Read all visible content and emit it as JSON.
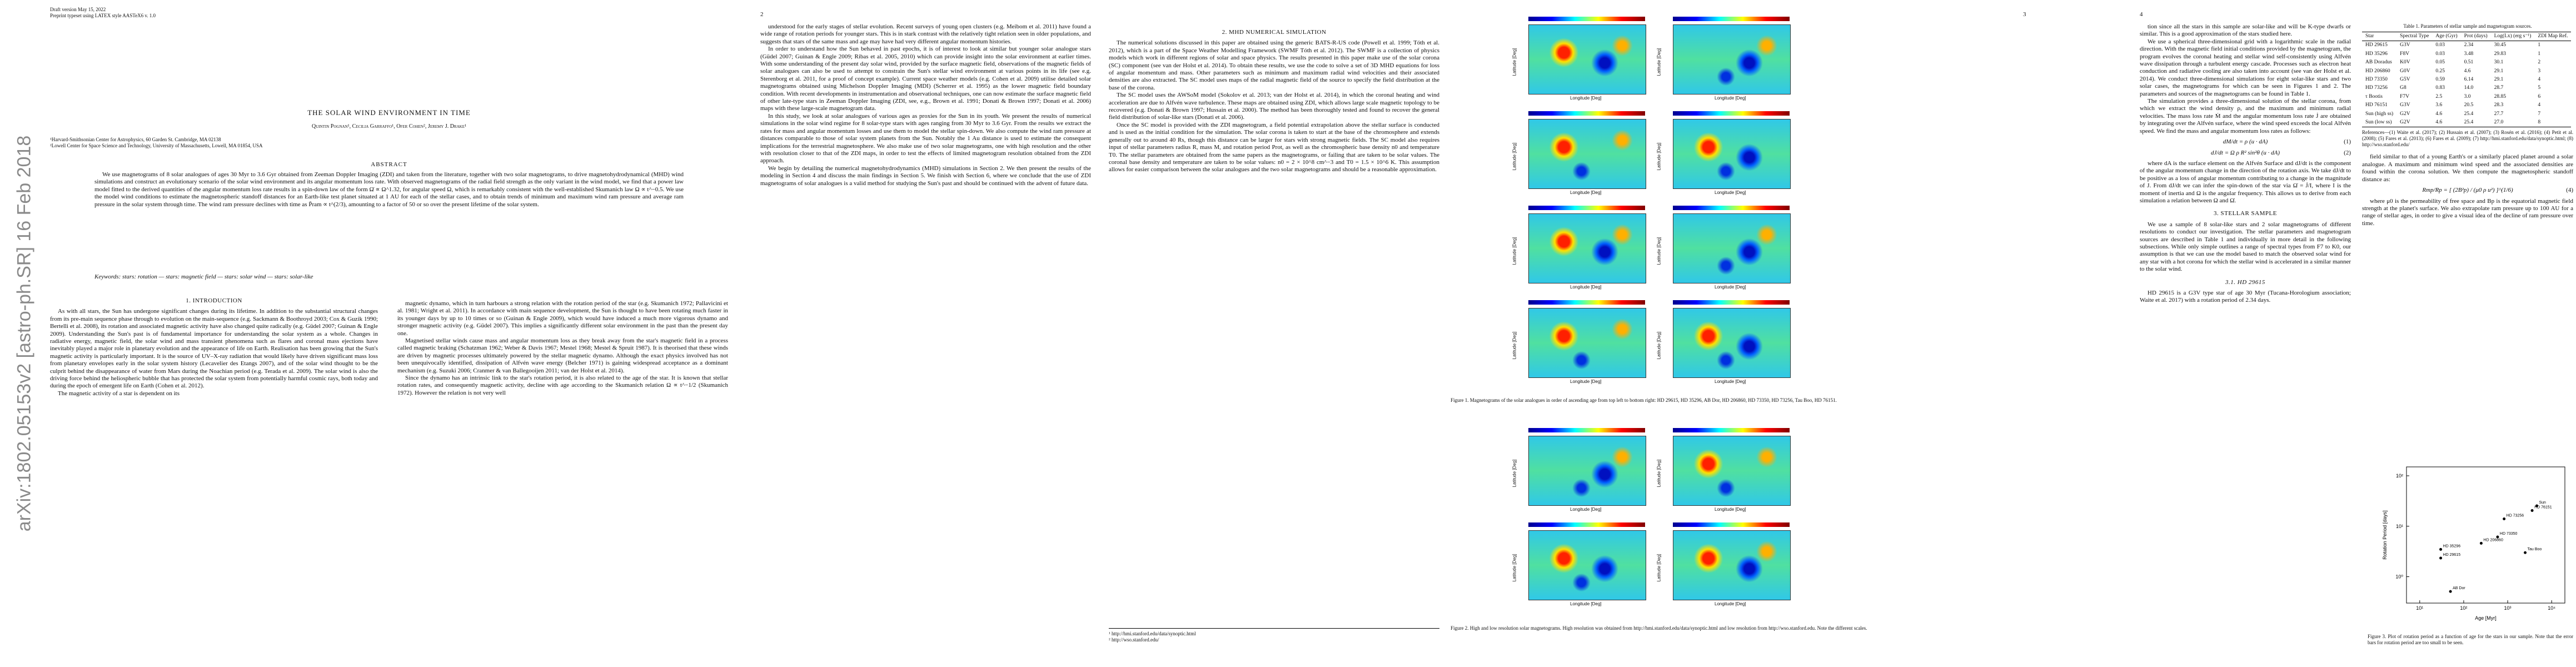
{
  "arxiv_stamp": "arXiv:1802.05153v2  [astro-ph.SR]  16 Feb 2018",
  "page1": {
    "header": [
      "Draft version May 15, 2022",
      "Preprint typeset using LATEX style AASTeX6 v. 1.0"
    ],
    "title": "THE SOLAR WIND ENVIRONMENT IN TIME",
    "authors": "Quintin Pognan¹, Cecilia Garraffo¹, Ofer Cohen², Jeremy J. Drake¹",
    "affiliations": [
      "¹Harvard-Smithsonian Center for Astrophysics, 60 Garden St. Cambridge, MA 02138",
      "²Lowell Center for Space Science and Technology, University of Massachusetts, Lowell, MA 01854, USA"
    ],
    "abstract_heading": "ABSTRACT",
    "abstract": "We use magnetograms of 8 solar analogues of ages 30 Myr to 3.6 Gyr obtained from Zeeman Doppler Imaging (ZDI) and taken from the literature, together with two solar magnetograms, to drive magnetohydrodynamical (MHD) wind simulations and construct an evolutionary scenario of the solar wind environment and its angular momentum loss rate. With observed magnetograms of the radial field strength as the only variant in the wind model, we find that a power law model fitted to the derived quantities of the angular momentum loss rate results in a spin-down law of the form Ω̇ ∝ Ω^1.32, for angular speed Ω, which is remarkably consistent with the well-established Skumanich law Ω ∝ t^−0.5. We use the model wind conditions to estimate the magnetospheric standoff distances for an Earth-like test planet situated at 1 AU for each of the stellar cases, and to obtain trends of minimum and maximum wind ram pressure and average ram pressure in the solar system through time. The wind ram pressure declines with time as P̄ram ∝ t^(2/3), amounting to a factor of 50 or so over the present lifetime of the solar system.",
    "keywords": "Keywords: stars: rotation — stars: magnetic field — stars: solar wind — stars: solar-like",
    "intro_heading": "1. INTRODUCTION",
    "col1": [
      "As with all stars, the Sun has undergone significant changes during its lifetime. In addition to the substantial structural changes from its pre-main sequence phase through to evolution on the main-sequence (e.g. Sackmann & Boothroyd 2003; Cox & Guzik 1990; Bertelli et al. 2008), its rotation and associated magnetic activity have also changed quite radically (e.g. Güdel 2007; Guinan & Engle 2009). Understanding the Sun's past is of fundamental importance for understanding the solar system as a whole. Changes in radiative energy, magnetic field, the solar wind and mass transient phenomena such as flares and coronal mass ejections have inevitably played a major role in planetary evolution and the appearance of life on Earth. Realisation has been growing that the Sun's magnetic activity is particularly important. It is the source of UV–X-ray radiation that would likely have driven significant mass loss from planetary envelopes early in the solar system history (Lecavelier des Etangs 2007), and of the solar wind thought to be the culprit behind the disappearance of water from Mars during the Noachian period (e.g. Terada et al. 2009). The solar wind is also the driving force behind the heliospheric bubble that has protected the solar system from potentially harmful cosmic rays, both today and during the epoch of emergent life on Earth (Cohen et al. 2012).",
      "The magnetic activity of a star is dependent on its"
    ],
    "col2": [
      "magnetic dynamo, which in turn harbours a strong relation with the rotation period of the star (e.g. Skumanich 1972; Pallavicini et al. 1981; Wright et al. 2011). In accordance with main sequence development, the Sun is thought to have been rotating much faster in its younger days by up to 10 times or so (Guinan & Engle 2009), which would have induced a much more vigorous dynamo and stronger magnetic activity (e.g. Güdel 2007). This implies a significantly different solar environment in the past than the present day one.",
      "Magnetised stellar winds cause mass and angular momentum loss as they break away from the star's magnetic field in a process called magnetic braking (Schatzman 1962; Weber & Davis 1967; Mestel 1968; Mestel & Spruit 1987). It is theorised that these winds are driven by magnetic processes ultimately powered by the stellar magnetic dynamo. Although the exact physics involved has not been unequivocally identified, dissipation of Alfvén wave energy (Belcher 1971) is gaining widespread acceptance as a dominant mechanism (e.g. Suzuki 2006; Cranmer & van Ballegooijen 2011; van der Holst et al. 2014).",
      "Since the dynamo has an intrinsic link to the star's rotation period, it is also related to the age of the star. It is known that stellar rotation rates, and consequently magnetic activity, decline with age according to the Skumanich relation Ω ∝ t^−1/2 (Skumanich 1972). However the relation is not very well"
    ]
  },
  "page2": {
    "number": "2",
    "col1": [
      "understood for the early stages of stellar evolution. Recent surveys of young open clusters (e.g. Meibom et al. 2011) have found a wide range of rotation periods for younger stars. This is in stark contrast with the relatively tight relation seen in older populations, and suggests that stars of the same mass and age may have had very different angular momentum histories.",
      "In order to understand how the Sun behaved in past epochs, it is of interest to look at similar but younger solar analogue stars (Güdel 2007; Guinan & Engle 2009; Ribas et al. 2005, 2010) which can provide insight into the solar environment at earlier times. With some understanding of the present day solar wind, provided by the surface magnetic field, observations of the magnetic fields of solar analogues can also be used to attempt to constrain the Sun's stellar wind environment at various points in its life (see e.g. Sterenborg et al. 2011, for a proof of concept example). Current space weather models (e.g. Cohen et al. 2009) utilise detailed solar magnetograms obtained using Michelson Doppler Imaging (MDI) (Scherrer et al. 1995) as the lower magnetic field boundary condition. With recent developments in instrumentation and observational techniques, one can now estimate the surface magnetic field of other late-type stars in Zeeman Doppler Imaging (ZDI, see, e.g., Brown et al. 1991; Donati & Brown 1997; Donati et al. 2006) maps with these large-scale magnetogram data.",
      "In this study, we look at solar analogues of various ages as proxies for the Sun in its youth. We present the results of numerical simulations in the solar wind regime for 8 solar-type stars with ages ranging from 30 Myr to 3.6 Gyr. From the results we extract the rates for mass and angular momentum losses and use them to model the stellar spin-down. We also compute the wind ram pressure at distances comparable to those of solar system planets from the Sun. Notably the 1 Au distance is used to estimate the consequent implications for the terrestrial magnetosphere. We also make use of two solar magnetograms, one with high resolution and the other with resolution closer to that of the ZDI maps, in order to test the effects of limited magnetogram resolution obtained from the ZDI approach.",
      "We begin by detailing the numerical magnetohydrodynamics (MHD) simulations in Section 2. We then present the results of the modeling in Section 4 and discuss the main findings in Section 5. We finish with Section 6, where we conclude that the use of ZDI magnetograms of solar analogues is a valid method for studying the Sun's past and should be continued with the advent of future data."
    ],
    "section_heading": "2. MHD NUMERICAL SIMULATION",
    "col2": [
      "The numerical solutions discussed in this paper are obtained using the generic BATS-R-US code (Powell et al. 1999; Tóth et al. 2012), which is a part of the Space Weather Modelling Framework (SWMF Tóth et al. 2012). The SWMF is a collection of physics models which work in different regions of solar and space physics. The results presented in this paper make use of the solar corona (SC) component (see van der Holst et al. 2014). To obtain these results, we use the code to solve a set of 3D MHD equations for loss of angular momentum and mass. Other parameters such as minimum and maximum radial wind velocities and their associated densities are also extracted. The SC model uses maps of the radial magnetic field of the source to specify the field distribution at the base of the corona.",
      "The SC model uses the AWSoM model (Sokolov et al. 2013; van der Holst et al. 2014), in which the coronal heating and wind acceleration are due to Alfvén wave turbulence. These maps are obtained using ZDI, which allows large scale magnetic topology to be recovered (e.g. Donati & Brown 1997; Hussain et al. 2000). The method has been thoroughly tested and found to recover the general field distribution of solar-like stars (Donati et al. 2006).",
      "Once the SC model is provided with the ZDI magnetogram, a field potential extrapolation above the stellar surface is conducted and is used as the initial condition for the simulation. The solar corona is taken to start at the base of the chromosphere and extends generally out to around 40 Rs, though this distance can be larger for stars with strong magnetic fields. The SC model also requires input of stellar parameters radius R, mass M, and rotation period Prot, as well as the chromospheric base density n0 and temperature T0. The stellar parameters are obtained from the same papers as the magnetograms, or failing that are taken to be solar values. The coronal base density and temperature are taken to be solar values: n0 = 2 × 10^8 cm^−3 and T0 = 1.5 × 10^6 K. This assumption allows for easier comparison between the solar analogues and the two solar magnetograms and should be a reasonable approximation."
    ],
    "footnotes": [
      "¹ http://hmi.stanford.edu/data/synoptic.html",
      "² http://wso.stanford.edu/"
    ]
  },
  "page3": {
    "number": "3",
    "map_ylabel": "Latitude [Deg]",
    "map_xlabel": "Longitude [Deg]",
    "figure1_caption": "Figure 1. Magnetograms of the solar analogues in order of ascending age from top left to bottom right: HD 29615, HD 35296, AB Dor, HD 206860, HD 73350, HD 73256, Tau Boo, HD 76151.",
    "figure2_caption": "Figure 2. High and low resolution solar magnetograms. High resolution was obtained from http://hmi.stanford.edu/data/synoptic.html and low resolution from http://wso.stanford.edu. Note the different scales."
  },
  "page4": {
    "number": "4",
    "col1_top": [
      "tion since all the stars in this sample are solar-like and will be K-type dwarfs or similar. This is a good approximation of the stars studied here.",
      "We use a spherical three-dimensional grid with a logarithmic scale in the radial direction. With the magnetic field initial conditions provided by the magnetogram, the program evolves the coronal heating and stellar wind self-consistently using Alfvén wave dissipation through a turbulent energy cascade. Processes such as electron heat conduction and radiative cooling are also taken into account (see van der Holst et al. 2014). We conduct three-dimensional simulations for eight solar-like stars and two solar cases, the magnetograms for which can be seen in Figures 1 and 2. The parameters and sources of the magnetograms can be found in Table 1.",
      "The simulation provides a three-dimensional solution of the stellar corona, from which we extract the wind density ρ, and the maximum and minimum radial velocities. The mass loss rate Ṁ and the angular momentum loss rate J̇ are obtained by integrating over the Alfvén surface, where the wind speed exceeds the local Alfvén speed. We find the mass and angular momentum loss rates as follows:"
    ],
    "equations": [
      "dM/dt = ρ (u · dA)",
      "dJ/dt = Ω ρ R² sin²θ (u · dA)"
    ],
    "col1_mid": "where dA is the surface element on the Alfvén Surface and dJ/dt is the component of the angular momentum change in the direction of the rotation axis. We take dJ/dt to be positive as a loss of angular momentum contributing to a change in the magnitude of J. From dJ/dt we can infer the spin-down of the star via Ω̇ = J̇/I, where I is the moment of inertia and Ω is the angular frequency. This allows us to derive from each simulation a relation between Ω and Ω̇.",
    "sec3": "3. STELLAR SAMPLE",
    "sec3_text": "We use a sample of 8 solar-like stars and 2 solar magnetograms of different resolutions to conduct our investigation. The stellar parameters and magnetogram sources are described in Table 1 and individually in more detail in the following subsections. While only simple outlines a range of spectral types from F7 to K0, our assumption is that we can use the model based to match the observed solar wind for any star with a hot corona for which the stellar wind is accelerated in a similar manner to the solar wind.",
    "sec31": "3.1. HD 29615",
    "sec31_text": "HD 29615 is a G3V type star of age 30 Myr (Tucana-Horologium association; Waite et al. 2017) with a rotation period of 2.34 days.",
    "table_caption": "Table 1. Parameters of stellar sample and magnetogram sources.",
    "table": {
      "columns": [
        "Star",
        "Spectral Type",
        "Age (Gyr)",
        "Prot (days)",
        "Log(Lx) (erg s⁻¹)",
        "ZDI Map Ref."
      ],
      "rows": [
        [
          "HD 29615",
          "G3V",
          "0.03",
          "2.34",
          "30.45",
          "1"
        ],
        [
          "HD 35296",
          "F8V",
          "0.03",
          "3.48",
          "29.83",
          "1"
        ],
        [
          "AB Doradus",
          "K0V",
          "0.05",
          "0.51",
          "30.1",
          "2"
        ],
        [
          "HD 206860",
          "G0V",
          "0.25",
          "4.6",
          "29.1",
          "3"
        ],
        [
          "HD 73350",
          "G5V",
          "0.59",
          "6.14",
          "29.1",
          "4"
        ],
        [
          "HD 73256",
          "G8",
          "0.83",
          "14.0",
          "28.7",
          "5"
        ],
        [
          "τ Bootis",
          "F7V",
          "2.5",
          "3.0",
          "28.85",
          "6"
        ],
        [
          "HD 76151",
          "G3V",
          "3.6",
          "20.5",
          "28.3",
          "4"
        ],
        [
          "Sun (high ss)",
          "G2V",
          "4.6",
          "25.4",
          "27.7",
          "7"
        ],
        [
          "Sun (low ss)",
          "G2V",
          "4.6",
          "25.4",
          "27.0",
          "8"
        ]
      ]
    },
    "table_notes": "References—(1) Waite et al. (2017); (2) Hussain et al. (2007); (3) Rosén et al. (2016); (4) Petit et al. (2008); (5) Fares et al. (2013); (6) Fares et al. (2009); (7) http://hmi.stanford.edu/data/synoptic.html; (8) http://wso.stanford.edu/",
    "col2_text": "field similar to that of a young Earth's or a similarly placed planet around a solar analogue. A maximum and minimum wind speed and the associated densities are found within the corona solution. We then compute the magnetospheric standoff distance as:",
    "equation4": "Rmp/Rp = [ (2B²p) / (μ0 ρ u²) ]^(1/6)",
    "col2_after": "where μ0 is the permeability of free space and Bp is the equatorial magnetic field strength at the planet's surface. We also extrapolate ram pressure up to 100 AU for a range of stellar ages, in order to give a visual idea of the decline of ram pressure over time.",
    "figure3": {
      "xlabel": "Age [Myr]",
      "ylabel": "Rotation Period [days]",
      "xlim": [
        5,
        20000
      ],
      "ylim": [
        0.3,
        150
      ],
      "xticks": [
        {
          "value": 10,
          "label": "10¹"
        },
        {
          "value": 100,
          "label": "10²"
        },
        {
          "value": 1000,
          "label": "10³"
        },
        {
          "value": 10000,
          "label": "10⁴"
        }
      ],
      "yticks": [
        {
          "value": 1,
          "label": "10⁰"
        },
        {
          "value": 10,
          "label": "10¹"
        },
        {
          "value": 100,
          "label": "10²"
        }
      ],
      "points": [
        {
          "name": "HD 29615",
          "x": 30,
          "y": 2.34
        },
        {
          "name": "HD 35296",
          "x": 30,
          "y": 3.48
        },
        {
          "name": "AB Dor",
          "x": 50,
          "y": 0.51
        },
        {
          "name": "HD 206860",
          "x": 250,
          "y": 4.6
        },
        {
          "name": "HD 73350",
          "x": 590,
          "y": 6.14
        },
        {
          "name": "HD 73256",
          "x": 830,
          "y": 14.0
        },
        {
          "name": "Tau Boo",
          "x": 2500,
          "y": 3.0
        },
        {
          "name": "HD 76151",
          "x": 3600,
          "y": 20.5
        },
        {
          "name": "Sun",
          "x": 4600,
          "y": 25.4
        }
      ],
      "caption": "Figure 3. Plot of rotation period as a function of age for the stars in our sample. Note that the error bars for rotation period are too small to be seen."
    }
  }
}
